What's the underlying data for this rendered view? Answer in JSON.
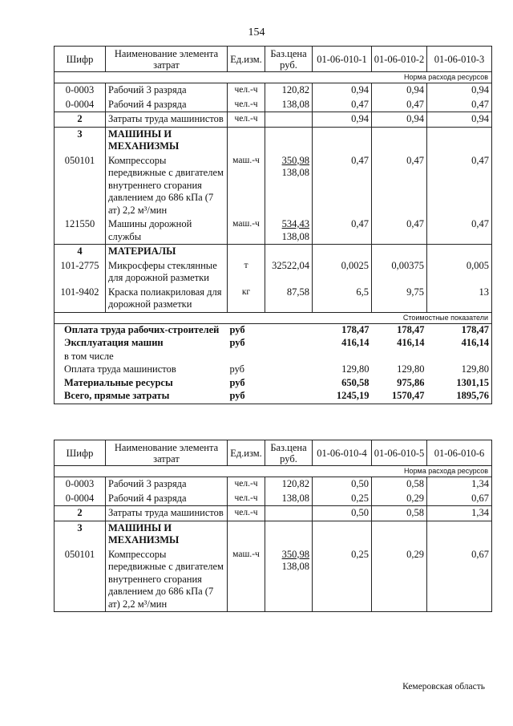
{
  "page_number": "154",
  "footer": "Кемеровская область",
  "tables": [
    {
      "headers": [
        "Шифр",
        "Наименование элемента затрат",
        "Ед.изм.",
        "Баз.цена руб.",
        "01-06-010-1",
        "01-06-010-2",
        "01-06-010-3"
      ],
      "norm_label": "Норма расхода ресурсов",
      "groups": [
        {
          "rows": [
            {
              "code": "0-0003",
              "name": "Рабочий 3 разряда",
              "unit": "чел.-ч",
              "price": "120,82",
              "values": [
                "0,94",
                "0,94",
                "0,94"
              ]
            },
            {
              "code": "0-0004",
              "name": "Рабочий 4 разряда",
              "unit": "чел.-ч",
              "price": "138,08",
              "values": [
                "0,47",
                "0,47",
                "0,47"
              ]
            }
          ]
        },
        {
          "rows": [
            {
              "code": "2",
              "code_bold": true,
              "name": "Затраты труда машинистов",
              "unit": "чел.-ч",
              "price": "",
              "values": [
                "0,94",
                "0,94",
                "0,94"
              ]
            }
          ]
        },
        {
          "rows": [
            {
              "code": "3",
              "code_bold": true,
              "name": "МАШИНЫ И МЕХАНИЗМЫ",
              "name_bold": true,
              "unit": "",
              "price": "",
              "values": [
                "",
                "",
                ""
              ]
            },
            {
              "code": "050101",
              "name": "Компрессоры передвижные с двигателем внутреннего сгорания давлением до 686 кПа (7 ат) 2,2 м³/мин",
              "unit": "маш.-ч",
              "price": "350,98",
              "price_sub": "138,08",
              "values": [
                "0,47",
                "0,47",
                "0,47"
              ]
            },
            {
              "code": "121550",
              "name": "Машины дорожной службы",
              "unit": "маш.-ч",
              "price": "534,43",
              "price_sub": "138,08",
              "values": [
                "0,47",
                "0,47",
                "0,47"
              ]
            }
          ]
        },
        {
          "rows": [
            {
              "code": "4",
              "code_bold": true,
              "name": "МАТЕРИАЛЫ",
              "name_bold": true,
              "unit": "",
              "price": "",
              "values": [
                "",
                "",
                ""
              ]
            },
            {
              "code": "101-2775",
              "name": "Микросферы стеклянные для дорожной разметки",
              "unit": "т",
              "price": "32522,04",
              "values": [
                "0,0025",
                "0,00375",
                "0,005"
              ]
            },
            {
              "code": "101-9402",
              "name": "Краска полиакриловая для дорожной разметки",
              "unit": "кг",
              "price": "87,58",
              "values": [
                "6,5",
                "9,75",
                "13"
              ]
            }
          ]
        }
      ],
      "cost_label": "Стоимостные показатели",
      "costs": [
        {
          "name": "Оплата труда рабочих-строителей",
          "bold": true,
          "unit": "руб",
          "values": [
            "178,47",
            "178,47",
            "178,47"
          ]
        },
        {
          "name": "Эксплуатация машин",
          "bold": true,
          "unit": "руб",
          "values": [
            "416,14",
            "416,14",
            "416,14"
          ]
        },
        {
          "name": "в том числе",
          "unit": "",
          "values": [
            "",
            "",
            ""
          ]
        },
        {
          "name": "Оплата труда машинистов",
          "unit": "руб",
          "values": [
            "129,80",
            "129,80",
            "129,80"
          ]
        },
        {
          "name": "Материальные ресурсы",
          "bold": true,
          "unit": "руб",
          "values": [
            "650,58",
            "975,86",
            "1301,15"
          ]
        },
        {
          "name": "Всего, прямые затраты",
          "bold": true,
          "unit": "руб",
          "values": [
            "1245,19",
            "1570,47",
            "1895,76"
          ]
        }
      ]
    },
    {
      "headers": [
        "Шифр",
        "Наименование элемента затрат",
        "Ед.изм.",
        "Баз.цена руб.",
        "01-06-010-4",
        "01-06-010-5",
        "01-06-010-6"
      ],
      "norm_label": "Норма расхода ресурсов",
      "groups": [
        {
          "rows": [
            {
              "code": "0-0003",
              "name": "Рабочий 3 разряда",
              "unit": "чел.-ч",
              "price": "120,82",
              "values": [
                "0,50",
                "0,58",
                "1,34"
              ]
            },
            {
              "code": "0-0004",
              "name": "Рабочий 4 разряда",
              "unit": "чел.-ч",
              "price": "138,08",
              "values": [
                "0,25",
                "0,29",
                "0,67"
              ]
            }
          ]
        },
        {
          "rows": [
            {
              "code": "2",
              "code_bold": true,
              "name": "Затраты труда машинистов",
              "unit": "чел.-ч",
              "price": "",
              "values": [
                "0,50",
                "0,58",
                "1,34"
              ]
            }
          ]
        },
        {
          "rows": [
            {
              "code": "3",
              "code_bold": true,
              "name": "МАШИНЫ И МЕХАНИЗМЫ",
              "name_bold": true,
              "unit": "",
              "price": "",
              "values": [
                "",
                "",
                ""
              ]
            },
            {
              "code": "050101",
              "name": "Компрессоры передвижные с двигателем внутреннего сгорания давлением до 686 кПа (7 ат) 2,2 м³/мин",
              "unit": "маш.-ч",
              "price": "350,98",
              "price_sub": "138,08",
              "values": [
                "0,25",
                "0,29",
                "0,67"
              ]
            }
          ]
        }
      ]
    }
  ]
}
